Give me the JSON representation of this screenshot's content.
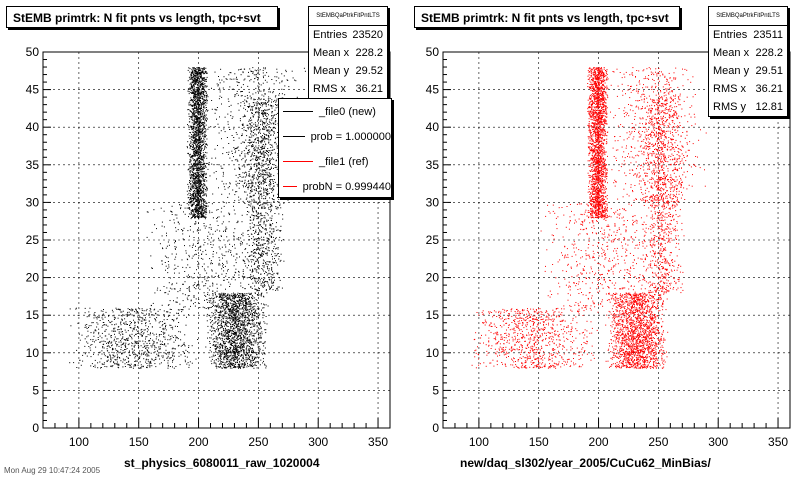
{
  "footer_text": "Mon Aug 29 10:47:24 2005",
  "panels": [
    {
      "title": "StEMB primtrk: N fit pnts vs length, tpc+svt",
      "stats": {
        "name": "StEMBQaPtrkFitPntLTS",
        "rows": [
          {
            "label": "Entries",
            "value": "23520"
          },
          {
            "label": "Mean x",
            "value": "228.2"
          },
          {
            "label": "Mean y",
            "value": "29.52"
          },
          {
            "label": "RMS x",
            "value": "36.21"
          }
        ]
      },
      "legend": [
        {
          "label": "_file0 (new)",
          "color": "#000000"
        },
        {
          "label": "prob = 1.000000",
          "color": "#000000"
        },
        {
          "label": "_file1 (ref)",
          "color": "#ff0000"
        },
        {
          "label": "probN = 0.999440",
          "color": "#ff0000"
        }
      ],
      "xlabel": "st_physics_6080011_raw_1020004"
    },
    {
      "title": "StEMB primtrk: N fit pnts vs length, tpc+svt",
      "stats": {
        "name": "StEMBQaPtrkFitPntLTS",
        "rows": [
          {
            "label": "Entries",
            "value": "23511"
          },
          {
            "label": "Mean x",
            "value": "228.2"
          },
          {
            "label": "Mean y",
            "value": "29.51"
          },
          {
            "label": "RMS x",
            "value": "36.21"
          },
          {
            "label": "RMS y",
            "value": "12.81"
          }
        ]
      },
      "legend": [],
      "xlabel": "new/daq_sl302/year_2005/CuCu62_MinBias/"
    }
  ],
  "chart_data": [
    {
      "type": "scatter",
      "title": "StEMB primtrk: N fit pnts vs length, tpc+svt",
      "xlabel": "st_physics_6080011_raw_1020004",
      "ylabel": "",
      "xlim": [
        70,
        360
      ],
      "ylim": [
        0,
        50
      ],
      "xticks": [
        100,
        150,
        200,
        250,
        300,
        350
      ],
      "yticks": [
        0,
        5,
        10,
        15,
        20,
        25,
        30,
        35,
        40,
        45,
        50
      ],
      "grid": true,
      "color": "#000000",
      "n_points": 7000,
      "clusters": [
        {
          "x": [
            190,
            208
          ],
          "y": [
            28,
            48
          ],
          "weight": 0.3
        },
        {
          "x": [
            205,
            258
          ],
          "y": [
            8,
            18
          ],
          "weight": 0.25
        },
        {
          "x": [
            235,
            272
          ],
          "y": [
            18,
            44
          ],
          "weight": 0.15
        },
        {
          "x": [
            205,
            290
          ],
          "y": [
            30,
            48
          ],
          "weight": 0.1
        },
        {
          "x": [
            90,
            200
          ],
          "y": [
            8,
            16
          ],
          "weight": 0.12
        },
        {
          "x": [
            150,
            260
          ],
          "y": [
            16,
            30
          ],
          "weight": 0.08
        }
      ]
    },
    {
      "type": "scatter",
      "title": "StEMB primtrk: N fit pnts vs length, tpc+svt",
      "xlabel": "new/daq_sl302/year_2005/CuCu62_MinBias/",
      "ylabel": "",
      "xlim": [
        70,
        360
      ],
      "ylim": [
        0,
        50
      ],
      "xticks": [
        100,
        150,
        200,
        250,
        300,
        350
      ],
      "yticks": [
        0,
        5,
        10,
        15,
        20,
        25,
        30,
        35,
        40,
        45,
        50
      ],
      "grid": true,
      "color": "#ff0000",
      "n_points": 7000,
      "clusters": [
        {
          "x": [
            190,
            208
          ],
          "y": [
            28,
            48
          ],
          "weight": 0.3
        },
        {
          "x": [
            205,
            258
          ],
          "y": [
            8,
            18
          ],
          "weight": 0.25
        },
        {
          "x": [
            235,
            272
          ],
          "y": [
            18,
            44
          ],
          "weight": 0.15
        },
        {
          "x": [
            205,
            290
          ],
          "y": [
            30,
            48
          ],
          "weight": 0.1
        },
        {
          "x": [
            90,
            200
          ],
          "y": [
            8,
            16
          ],
          "weight": 0.12
        },
        {
          "x": [
            150,
            260
          ],
          "y": [
            16,
            30
          ],
          "weight": 0.08
        }
      ]
    }
  ]
}
